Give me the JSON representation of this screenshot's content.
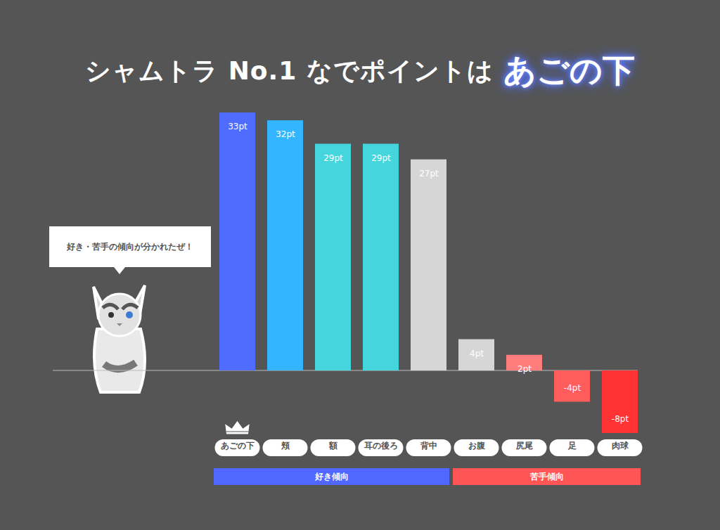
{
  "chart_data": {
    "type": "bar",
    "title": "シャムトラ No.1 なでポイントは",
    "title_highlight": "あごの下",
    "annotations": [
      "好き・苦手の傾向が分かれたぜ！"
    ],
    "categories": [
      "あごの下",
      "頬",
      "額",
      "耳の後ろ",
      "背中",
      "お腹",
      "尻尾",
      "足",
      "肉球"
    ],
    "values": [
      33,
      32,
      29,
      29,
      27,
      4,
      2,
      -4,
      -8
    ],
    "value_labels": [
      "33pt",
      "32pt",
      "29pt",
      "29pt",
      "27pt",
      "4pt",
      "2pt",
      "-4pt",
      "-8pt"
    ],
    "colors": [
      "#4f6cff",
      "#33b5ff",
      "#44d6dc",
      "#44d6dc",
      "#d6d6d6",
      "#d6d6d6",
      "#ff7d7d",
      "#ff5c5c",
      "#ff3333"
    ],
    "groups": [
      {
        "name": "好き傾向",
        "color": "#5068ff",
        "categories": [
          "あごの下",
          "頬",
          "額",
          "耳の後ろ",
          "背中"
        ]
      },
      {
        "name": "苦手傾向",
        "color": "#ff5555",
        "categories": [
          "お腹",
          "尻尾",
          "足",
          "肉球"
        ]
      }
    ],
    "ylim": [
      -8,
      33
    ],
    "yticks": [],
    "grid": false,
    "data_labels": true,
    "tick_labels": "x"
  }
}
